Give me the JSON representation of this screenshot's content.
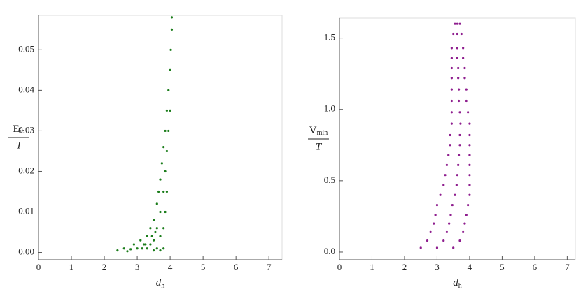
{
  "chart_data": [
    {
      "type": "scatter",
      "color": "#1b7d1b",
      "xlabel": "d",
      "xlabel_subscript": "h",
      "ylabel": "E",
      "ylabel_subscript": "in",
      "ylabel_denominator": "T",
      "xlim": [
        0,
        7.4
      ],
      "ylim": [
        -0.0018,
        0.0585
      ],
      "xticks": [
        0,
        1,
        2,
        3,
        4,
        5,
        6,
        7
      ],
      "yticks": [
        {
          "value": 0,
          "label": "0.00"
        },
        0.01,
        0.02,
        0.03,
        0.04,
        0.05
      ],
      "x": [
        2.4,
        2.6,
        2.7,
        2.8,
        2.9,
        3.0,
        3.1,
        3.15,
        3.2,
        3.25,
        3.3,
        3.3,
        3.4,
        3.4,
        3.45,
        3.5,
        3.5,
        3.5,
        3.55,
        3.6,
        3.6,
        3.6,
        3.65,
        3.7,
        3.7,
        3.7,
        3.7,
        3.75,
        3.8,
        3.8,
        3.8,
        3.8,
        3.85,
        3.85,
        3.85,
        3.9,
        3.9,
        3.9,
        3.95,
        3.95,
        4.0,
        4.0,
        4.02,
        4.05,
        4.05
      ],
      "y": [
        0.0005,
        0.001,
        0.0003,
        0.0008,
        0.002,
        0.001,
        0.003,
        0.001,
        0.002,
        0.002,
        0.004,
        0.001,
        0.006,
        0.002,
        0.004,
        0.008,
        0.003,
        0.0005,
        0.005,
        0.012,
        0.006,
        0.001,
        0.015,
        0.018,
        0.01,
        0.004,
        0.0005,
        0.022,
        0.026,
        0.015,
        0.006,
        0.001,
        0.03,
        0.02,
        0.01,
        0.035,
        0.025,
        0.015,
        0.04,
        0.03,
        0.045,
        0.035,
        0.05,
        0.055,
        0.058
      ]
    },
    {
      "type": "scatter",
      "color": "#8e1d8e",
      "xlabel": "d",
      "xlabel_subscript": "h",
      "ylabel": "V",
      "ylabel_subscript": "min",
      "ylabel_denominator": "T",
      "xlim": [
        0,
        7.25
      ],
      "ylim": [
        -0.054,
        1.64
      ],
      "xticks": [
        0,
        1,
        2,
        3,
        4,
        5,
        6,
        7
      ],
      "yticks": [
        {
          "value": 0,
          "label": "0.0"
        },
        0.5,
        {
          "value": 1,
          "label": "1.0"
        },
        1.5
      ],
      "x": [
        3.55,
        3.62,
        3.7,
        3.5,
        3.62,
        3.75,
        3.45,
        3.62,
        3.8,
        3.45,
        3.62,
        3.8,
        3.45,
        3.65,
        3.85,
        3.45,
        3.65,
        3.85,
        3.45,
        3.67,
        3.9,
        3.45,
        3.67,
        3.9,
        3.45,
        3.7,
        3.95,
        3.45,
        3.72,
        4.0,
        3.4,
        3.7,
        4.0,
        3.4,
        3.7,
        4.0,
        3.35,
        3.67,
        4.0,
        3.3,
        3.65,
        4.0,
        3.25,
        3.62,
        4.0,
        3.2,
        3.6,
        4.0,
        3.1,
        3.55,
        4.0,
        3.0,
        3.47,
        3.95,
        2.95,
        3.42,
        3.9,
        2.9,
        3.37,
        3.85,
        2.8,
        3.3,
        3.8,
        2.7,
        3.2,
        3.7,
        2.5,
        3.0,
        3.5
      ],
      "y": [
        1.6,
        1.6,
        1.6,
        1.53,
        1.53,
        1.53,
        1.43,
        1.43,
        1.43,
        1.36,
        1.36,
        1.36,
        1.29,
        1.29,
        1.29,
        1.22,
        1.22,
        1.22,
        1.14,
        1.14,
        1.14,
        1.06,
        1.06,
        1.06,
        0.98,
        0.98,
        0.98,
        0.9,
        0.9,
        0.9,
        0.82,
        0.82,
        0.82,
        0.75,
        0.75,
        0.75,
        0.68,
        0.68,
        0.68,
        0.61,
        0.61,
        0.61,
        0.54,
        0.54,
        0.54,
        0.47,
        0.47,
        0.47,
        0.4,
        0.4,
        0.4,
        0.33,
        0.33,
        0.33,
        0.26,
        0.26,
        0.26,
        0.2,
        0.2,
        0.2,
        0.14,
        0.14,
        0.14,
        0.08,
        0.08,
        0.08,
        0.03,
        0.03,
        0.03
      ]
    }
  ]
}
